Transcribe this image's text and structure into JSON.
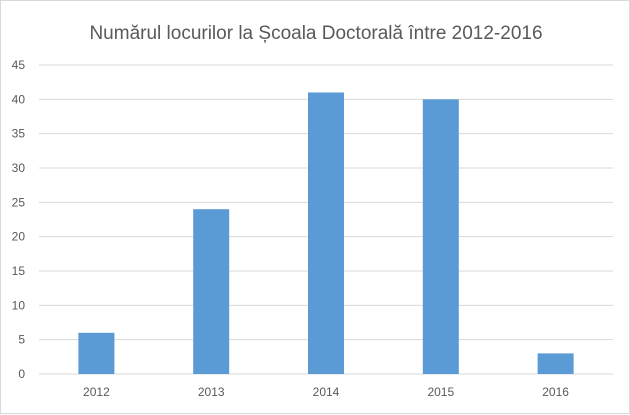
{
  "chart_data": {
    "type": "bar",
    "title": "Numărul locurilor la Școala Doctorală între 2012-2016",
    "categories": [
      "2012",
      "2013",
      "2014",
      "2015",
      "2016"
    ],
    "values": [
      6,
      24,
      41,
      40,
      3
    ],
    "xlabel": "",
    "ylabel": "",
    "ylim": [
      0,
      45
    ],
    "yticks": [
      "0",
      "5",
      "10",
      "15",
      "20",
      "25",
      "30",
      "35",
      "40",
      "45"
    ],
    "grid": true,
    "legend": "none",
    "colors": {
      "bar": "#5b9bd5",
      "grid": "#d9d9d9",
      "text": "#595959"
    }
  }
}
